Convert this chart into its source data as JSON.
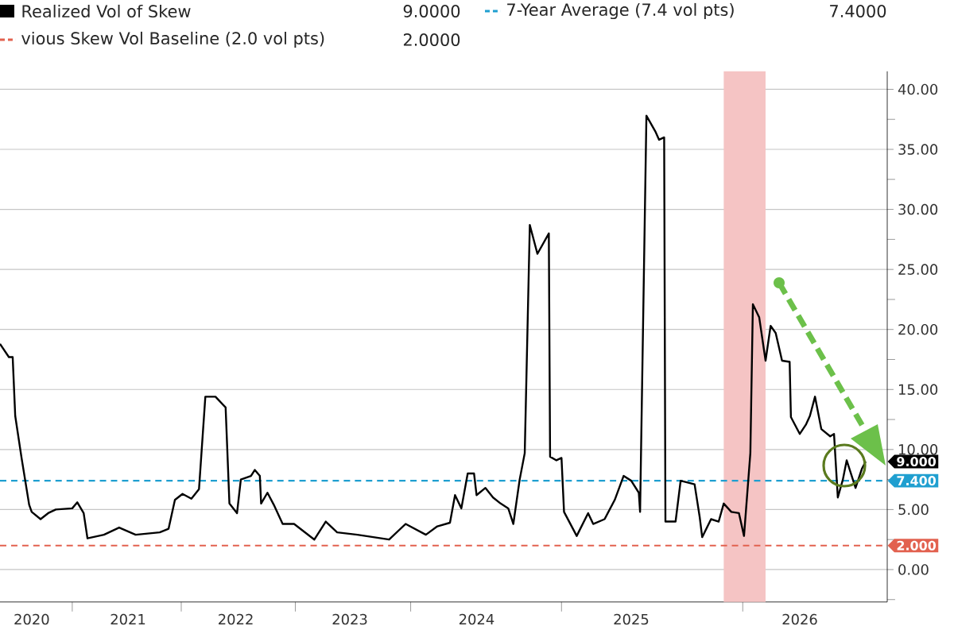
{
  "chart_data": {
    "type": "line",
    "x": [
      2020.01,
      2020.08,
      2020.11,
      2020.13,
      2020.18,
      2020.24,
      2020.26,
      2020.33,
      2020.39,
      2020.45,
      2020.58,
      2020.62,
      2020.67,
      2020.7,
      2020.83,
      2020.95,
      2021.08,
      2021.27,
      2021.34,
      2021.39,
      2021.45,
      2021.52,
      2021.58,
      2021.63,
      2021.71,
      2021.79,
      2021.82,
      2021.88,
      2021.91,
      2021.99,
      2022.02,
      2022.06,
      2022.07,
      2022.12,
      2022.17,
      2022.24,
      2022.33,
      2022.49,
      2022.58,
      2022.67,
      2022.83,
      2023.08,
      2023.21,
      2023.37,
      2023.46,
      2023.56,
      2023.6,
      2023.65,
      2023.7,
      2023.75,
      2023.77,
      2023.84,
      2023.9,
      2023.96,
      2024.02,
      2024.06,
      2024.11,
      2024.15,
      2024.19,
      2024.25,
      2024.34,
      2024.35,
      2024.4,
      2024.44,
      2024.46,
      2024.56,
      2024.65,
      2024.69,
      2024.78,
      2024.86,
      2024.93,
      2024.99,
      2025.05,
      2025.06,
      2025.11,
      2025.18,
      2025.21,
      2025.25,
      2025.26,
      2025.34,
      2025.38,
      2025.49,
      2025.53,
      2025.55,
      2025.62,
      2025.68,
      2025.72,
      2025.78,
      2025.84,
      2025.88,
      2025.93,
      2025.95,
      2026.0,
      2026.05,
      2026.09,
      2026.13,
      2026.18,
      2026.24,
      2026.25,
      2026.32,
      2026.37,
      2026.4,
      2026.44,
      2026.49,
      2026.56,
      2026.59,
      2026.62,
      2026.66,
      2026.69,
      2026.76,
      2026.81,
      2026.84
    ],
    "series": [
      {
        "name": "Realized Vol of Skew",
        "color": "#000000",
        "values": [
          18.8,
          17.7,
          17.7,
          12.8,
          9.3,
          5.4,
          4.8,
          4.2,
          4.7,
          5.0,
          5.1,
          5.6,
          4.7,
          2.6,
          2.9,
          3.5,
          2.9,
          3.1,
          3.4,
          5.8,
          6.3,
          5.9,
          6.7,
          14.4,
          14.4,
          13.5,
          5.5,
          4.7,
          7.5,
          7.8,
          8.3,
          7.8,
          5.5,
          6.4,
          5.4,
          3.8,
          3.8,
          2.5,
          4.0,
          3.1,
          2.9,
          2.5,
          3.8,
          2.9,
          3.6,
          3.9,
          6.2,
          5.1,
          8.0,
          8.0,
          6.2,
          6.8,
          6.0,
          5.5,
          5.1,
          3.8,
          7.5,
          9.7,
          28.7,
          26.3,
          28.0,
          9.4,
          9.1,
          9.3,
          4.8,
          2.8,
          4.7,
          3.8,
          4.2,
          5.8,
          7.8,
          7.4,
          6.4,
          4.8,
          37.8,
          36.5,
          35.8,
          36.0,
          4.0,
          4.0,
          7.4,
          7.1,
          4.4,
          2.7,
          4.2,
          4.0,
          5.5,
          4.8,
          4.7,
          2.8,
          9.7,
          22.1,
          21.0,
          17.4,
          20.3,
          19.7,
          17.4,
          17.3,
          12.7,
          11.3,
          12.1,
          12.8,
          14.4,
          11.7,
          11.1,
          11.3,
          6.0,
          7.5,
          9.1,
          6.8,
          8.4,
          9.0
        ]
      }
    ],
    "xlim": [
      2020.01,
      2027.01
    ],
    "xticks": [
      {
        "value": 2020.26,
        "label": "2020"
      },
      {
        "value": 2020.58,
        "label": null
      },
      {
        "value": 2021.02,
        "label": "2021"
      },
      {
        "value": 2021.44,
        "label": null
      },
      {
        "value": 2021.87,
        "label": "2022"
      },
      {
        "value": 2022.34,
        "label": null
      },
      {
        "value": 2022.77,
        "label": "2023"
      },
      {
        "value": 2023.25,
        "label": null
      },
      {
        "value": 2023.77,
        "label": "2024"
      },
      {
        "value": 2024.44,
        "label": null
      },
      {
        "value": 2024.99,
        "label": "2025"
      },
      {
        "value": 2025.87,
        "label": null
      },
      {
        "value": 2026.32,
        "label": "2026"
      }
    ],
    "ylim": [
      -2.7,
      41.5
    ],
    "yticks": [
      {
        "value": -2.5,
        "label": null
      },
      {
        "value": 0,
        "label": "0.00"
      },
      {
        "value": 2.5,
        "label": null
      },
      {
        "value": 5,
        "label": "5.00"
      },
      {
        "value": 7.5,
        "label": null
      },
      {
        "value": 10,
        "label": "10.00"
      },
      {
        "value": 12.5,
        "label": null
      },
      {
        "value": 15,
        "label": "15.00"
      },
      {
        "value": 17.5,
        "label": null
      },
      {
        "value": 20,
        "label": "20.00"
      },
      {
        "value": 22.5,
        "label": null
      },
      {
        "value": 25,
        "label": "25.00"
      },
      {
        "value": 27.5,
        "label": null
      },
      {
        "value": 30,
        "label": "30.00"
      },
      {
        "value": 32.5,
        "label": null
      },
      {
        "value": 35,
        "label": "35.00"
      },
      {
        "value": 37.5,
        "label": null
      },
      {
        "value": 40,
        "label": "40.00"
      }
    ],
    "ref_lines": [
      {
        "axis": "y",
        "value": 7.4,
        "label": "7-Year Average (7.4 vol pts)",
        "color": "#1f9fd0",
        "line_style": "dashed"
      },
      {
        "axis": "y",
        "value": 2.0,
        "label": "vious Skew Vol Baseline (2.0 vol pts)",
        "color": "#e2614f",
        "line_style": "dashed"
      }
    ],
    "bands": [
      {
        "axis": "x",
        "from": 2025.72,
        "to": 2026.05,
        "color": "#f5c4c4"
      }
    ],
    "annotations": [
      "9.0000",
      "7.4000",
      "2.0000",
      "9.000",
      "7.400",
      "2.000"
    ],
    "grid": "y",
    "legend": "top",
    "marker": "none",
    "line_style": "solid"
  }
}
